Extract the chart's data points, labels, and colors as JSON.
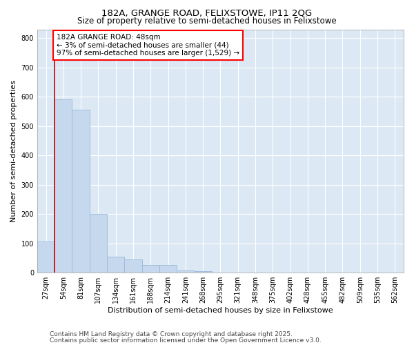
{
  "title1": "182A, GRANGE ROAD, FELIXSTOWE, IP11 2QG",
  "title2": "Size of property relative to semi-detached houses in Felixstowe",
  "xlabel": "Distribution of semi-detached houses by size in Felixstowe",
  "ylabel": "Number of semi-detached properties",
  "bar_color": "#c5d8ee",
  "bar_edge_color": "#9ab8d8",
  "plot_bg_color": "#dce9f5",
  "categories": [
    "27sqm",
    "54sqm",
    "81sqm",
    "107sqm",
    "134sqm",
    "161sqm",
    "188sqm",
    "214sqm",
    "241sqm",
    "268sqm",
    "295sqm",
    "321sqm",
    "348sqm",
    "375sqm",
    "402sqm",
    "428sqm",
    "455sqm",
    "482sqm",
    "509sqm",
    "535sqm",
    "562sqm"
  ],
  "values": [
    107,
    590,
    555,
    200,
    55,
    45,
    27,
    27,
    8,
    5,
    1,
    0,
    0,
    0,
    0,
    0,
    0,
    0,
    0,
    0,
    0
  ],
  "ylim": [
    0,
    830
  ],
  "yticks": [
    0,
    100,
    200,
    300,
    400,
    500,
    600,
    700,
    800
  ],
  "red_line_x": 0.5,
  "annotation_text": "182A GRANGE ROAD: 48sqm\n← 3% of semi-detached houses are smaller (44)\n97% of semi-detached houses are larger (1,529) →",
  "annotation_box_color": "white",
  "annotation_border_color": "red",
  "red_line_color": "#cc0000",
  "footnote1": "Contains HM Land Registry data © Crown copyright and database right 2025.",
  "footnote2": "Contains public sector information licensed under the Open Government Licence v3.0.",
  "title_fontsize": 9.5,
  "subtitle_fontsize": 8.5,
  "axis_label_fontsize": 8,
  "tick_fontsize": 7,
  "annotation_fontsize": 7.5,
  "footnote_fontsize": 6.5
}
